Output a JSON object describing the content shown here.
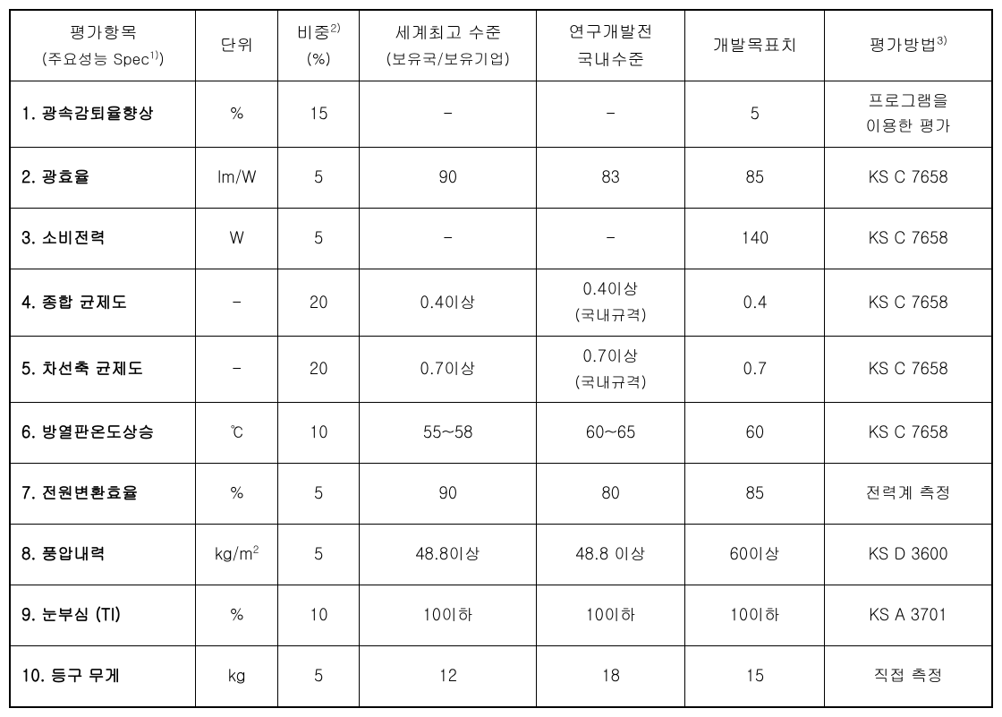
{
  "table": {
    "headers": {
      "col1_line1": "평가항목",
      "col1_line2": "(주요성능 Spec",
      "col1_sup": "1)",
      "col1_close": ")",
      "col2": "단위",
      "col3_line1": "비중",
      "col3_sup": "2)",
      "col3_line2": "(%)",
      "col4_line1": "세계최고 수준",
      "col4_line2": "(보유국/보유기업)",
      "col5_line1": "연구개발전",
      "col5_line2": "국내수준",
      "col6": "개발목표치",
      "col7": "평가방법",
      "col7_sup": "3)"
    },
    "rows": [
      {
        "label": "1. 광속감퇴율향상",
        "unit": "%",
        "weight": "15",
        "world": "-",
        "domestic": "-",
        "target": "5",
        "method_line1": "프로그램을",
        "method_line2": "이용한 평가"
      },
      {
        "label": "2. 광효율",
        "unit": "lm/W",
        "weight": "5",
        "world": "90",
        "domestic": "83",
        "target": "85",
        "method": "KS C 7658"
      },
      {
        "label": "3. 소비전력",
        "unit": "W",
        "weight": "5",
        "world": "-",
        "domestic": "-",
        "target": "140",
        "method": "KS C 7658"
      },
      {
        "label": "4. 종합 균제도",
        "unit": "-",
        "weight": "20",
        "world": "0.4이상",
        "domestic_line1": "0.4이상",
        "domestic_line2": "(국내규격)",
        "target": "0.4",
        "method": "KS C 7658"
      },
      {
        "label": "5. 차선축 균제도",
        "unit": "-",
        "weight": "20",
        "world": "0.7이상",
        "domestic_line1": "0.7이상",
        "domestic_line2": "(국내규격)",
        "target": "0.7",
        "method": "KS C 7658"
      },
      {
        "label": "6. 방열판온도상승",
        "unit": "℃",
        "weight": "10",
        "world": "55~58",
        "domestic": "60~65",
        "target": "60",
        "method": "KS C 7658"
      },
      {
        "label": "7. 전원변환효율",
        "unit": "%",
        "weight": "5",
        "world": "90",
        "domestic": "80",
        "target": "85",
        "method": "전력계 측정"
      },
      {
        "label": "8. 풍압내력",
        "unit_html": "kg/m",
        "unit_sup": "2",
        "weight": "5",
        "world": "48.8이상",
        "domestic": "48.8 이상",
        "target": "60이상",
        "method": "KS D 3600"
      },
      {
        "label": "9. 눈부심 (TI)",
        "unit": "%",
        "weight": "10",
        "world": "10이하",
        "domestic": "10이하",
        "target": "10이하",
        "method": "KS A 3701"
      },
      {
        "label": "10. 등구 무게",
        "unit": "kg",
        "weight": "5",
        "world": "12",
        "domestic": "18",
        "target": "15",
        "method": "직접 측정"
      }
    ]
  },
  "style": {
    "background": "#ffffff",
    "border_color": "#000000",
    "text_color": "#000000",
    "font_family": "Malgun Gothic"
  }
}
